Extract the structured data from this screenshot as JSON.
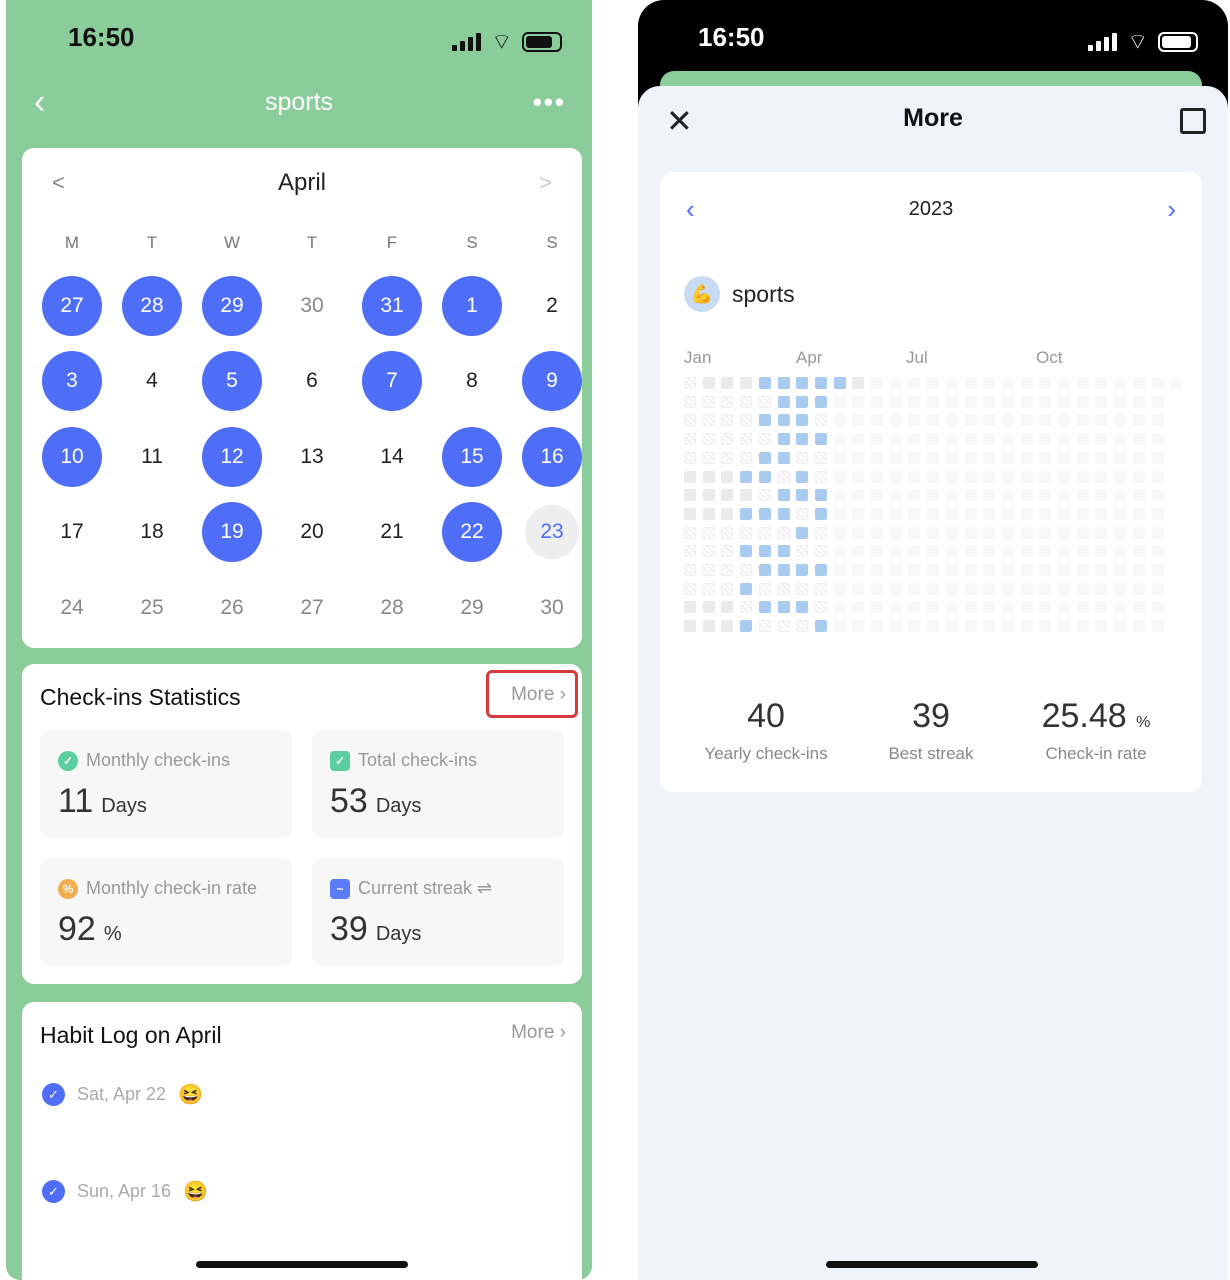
{
  "left": {
    "status_time": "16:50",
    "nav": {
      "title": "sports",
      "back_icon": "chevron-left-icon",
      "menu_icon": "more-dots-icon"
    },
    "calendar": {
      "month": "April",
      "weekdays": [
        "M",
        "T",
        "W",
        "T",
        "F",
        "S",
        "S"
      ],
      "days": [
        {
          "d": "27",
          "s": "on"
        },
        {
          "d": "28",
          "s": "on"
        },
        {
          "d": "29",
          "s": "on"
        },
        {
          "d": "30",
          "s": "prev"
        },
        {
          "d": "31",
          "s": "on"
        },
        {
          "d": "1",
          "s": "on"
        },
        {
          "d": "2",
          "s": ""
        },
        {
          "d": "3",
          "s": "on"
        },
        {
          "d": "4",
          "s": ""
        },
        {
          "d": "5",
          "s": "on"
        },
        {
          "d": "6",
          "s": ""
        },
        {
          "d": "7",
          "s": "on"
        },
        {
          "d": "8",
          "s": ""
        },
        {
          "d": "9",
          "s": "on"
        },
        {
          "d": "10",
          "s": "on"
        },
        {
          "d": "11",
          "s": ""
        },
        {
          "d": "12",
          "s": "on"
        },
        {
          "d": "13",
          "s": ""
        },
        {
          "d": "14",
          "s": ""
        },
        {
          "d": "15",
          "s": "on"
        },
        {
          "d": "16",
          "s": "on"
        },
        {
          "d": "17",
          "s": ""
        },
        {
          "d": "18",
          "s": ""
        },
        {
          "d": "19",
          "s": "on"
        },
        {
          "d": "20",
          "s": ""
        },
        {
          "d": "21",
          "s": ""
        },
        {
          "d": "22",
          "s": "on"
        },
        {
          "d": "23",
          "s": "today"
        },
        {
          "d": "24",
          "s": "fut"
        },
        {
          "d": "25",
          "s": "fut"
        },
        {
          "d": "26",
          "s": "fut"
        },
        {
          "d": "27",
          "s": "fut"
        },
        {
          "d": "28",
          "s": "fut"
        },
        {
          "d": "29",
          "s": "fut"
        },
        {
          "d": "30",
          "s": "fut"
        }
      ]
    },
    "stats": {
      "title": "Check-ins Statistics",
      "more": "More",
      "items": [
        {
          "label": "Monthly check-ins",
          "value": "11",
          "unit": "Days",
          "icon": "check-badge-icon",
          "color": "#5ccfa0"
        },
        {
          "label": "Total check-ins",
          "value": "53",
          "unit": "Days",
          "icon": "calendar-check-icon",
          "color": "#5ccfa0"
        },
        {
          "label": "Monthly check-in rate",
          "value": "92",
          "unit": "%",
          "icon": "percent-icon",
          "color": "#f2ad4e"
        },
        {
          "label": "Current streak ⇌",
          "value": "39",
          "unit": "Days",
          "icon": "trend-icon",
          "color": "#5b7cf5"
        }
      ]
    },
    "log": {
      "title": "Habit Log on April",
      "more": "More",
      "entries": [
        {
          "date": "Sat, Apr 22",
          "emoji": "😆"
        },
        {
          "date": "Sun, Apr 16",
          "emoji": "😆"
        }
      ]
    }
  },
  "right": {
    "status_time": "16:50",
    "title": "More",
    "year": "2023",
    "habit": "sports",
    "habit_emoji": "💪",
    "months": [
      "Jan",
      "Apr",
      "Jul",
      "Oct"
    ],
    "heatmap_rows": [
      "hgggbbbbbg",
      "hhhhhbbb",
      "hhhhbbbh",
      "hhhhhbbb",
      "hhhhbbhh",
      "gggbbhbh",
      "gggghbbb",
      "gggbbbhb",
      "hhhhhhbh",
      "hhhbbbhh",
      "hhhhbbbb",
      "hhhbhhhh",
      "ggghbbbh",
      "gggbhhhb"
    ],
    "heatmap_legend": {
      "b": "checked",
      "h": "missed",
      "g": "no record",
      "f": "future"
    },
    "colors": {
      "checked": "#a9cbf0",
      "accent": "#4f6ef7",
      "brand": "#8bcc9b"
    },
    "summary": [
      {
        "value": "40",
        "unit": "",
        "label": "Yearly check-ins"
      },
      {
        "value": "39",
        "unit": "",
        "label": "Best streak"
      },
      {
        "value": "25.48",
        "unit": "%",
        "label": "Check-in rate"
      }
    ]
  }
}
